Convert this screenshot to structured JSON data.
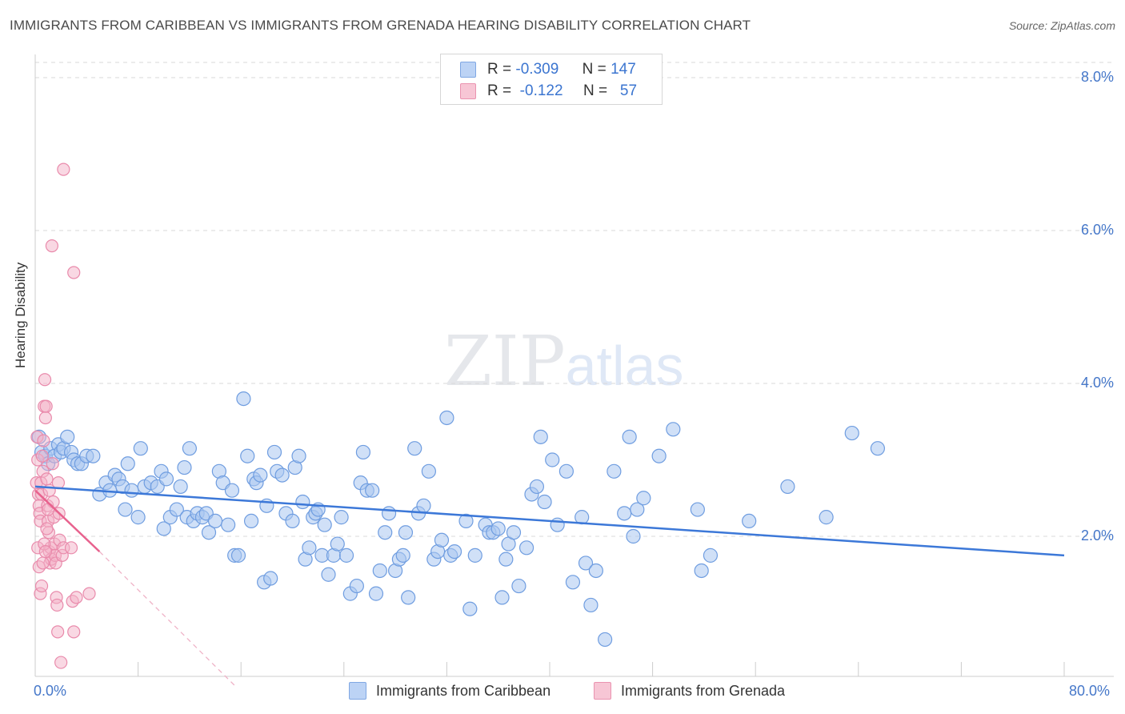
{
  "title": "IMMIGRANTS FROM CARIBBEAN VS IMMIGRANTS FROM GRENADA HEARING DISABILITY CORRELATION CHART",
  "source": "Source: ZipAtlas.com",
  "watermark": {
    "zip": "ZIP",
    "atlas": "atlas"
  },
  "legend": {
    "rows": [
      {
        "r_label": "R =",
        "r_value": "-0.309",
        "n_label": "N =",
        "n_value": "147"
      },
      {
        "r_label": "R =",
        "r_value": "-0.122",
        "n_label": "N =",
        "n_value": "57"
      }
    ]
  },
  "bottom_legend": [
    "Immigrants from Caribbean",
    "Immigrants from Grenada"
  ],
  "colors": {
    "blue": "#3c78d8",
    "blue_fill": "#a9c6f0",
    "pink": "#e8628e",
    "pink_fill": "#f4b2c8",
    "tick_text": "#4577c9",
    "grid": "#d9d9d9"
  },
  "chart_data": {
    "type": "scatter",
    "title": "IMMIGRANTS FROM CARIBBEAN VS IMMIGRANTS FROM GRENADA HEARING DISABILITY CORRELATION CHART",
    "xlabel": "",
    "ylabel": "Hearing Disability",
    "xlim": [
      0,
      80
    ],
    "ylim": [
      0,
      8.2
    ],
    "x_tick_labels": [
      "0.0%",
      "80.0%"
    ],
    "y_ticks": [
      2,
      4,
      6,
      8
    ],
    "y_tick_labels": [
      "2.0%",
      "4.0%",
      "6.0%",
      "8.0%"
    ],
    "series": [
      {
        "name": "Immigrants from Caribbean",
        "color": "#3c78d8",
        "trend": {
          "x": [
            0,
            80
          ],
          "y": [
            2.65,
            1.75
          ]
        },
        "points": [
          [
            0.3,
            3.3
          ],
          [
            0.5,
            3.1
          ],
          [
            0.8,
            3.05
          ],
          [
            1,
            2.95
          ],
          [
            1.2,
            3.15
          ],
          [
            1.5,
            3.05
          ],
          [
            1.8,
            3.2
          ],
          [
            2,
            3.1
          ],
          [
            2.2,
            3.15
          ],
          [
            2.5,
            3.3
          ],
          [
            2.8,
            3.1
          ],
          [
            3,
            3.0
          ],
          [
            3.3,
            2.95
          ],
          [
            3.6,
            2.95
          ],
          [
            4,
            3.05
          ],
          [
            4.5,
            3.05
          ],
          [
            5,
            2.55
          ],
          [
            5.5,
            2.7
          ],
          [
            5.8,
            2.6
          ],
          [
            6.2,
            2.8
          ],
          [
            6.5,
            2.75
          ],
          [
            6.8,
            2.65
          ],
          [
            7,
            2.35
          ],
          [
            7.2,
            2.95
          ],
          [
            7.5,
            2.6
          ],
          [
            8,
            2.25
          ],
          [
            8.2,
            3.15
          ],
          [
            8.5,
            2.65
          ],
          [
            9,
            2.7
          ],
          [
            9.5,
            2.65
          ],
          [
            9.8,
            2.85
          ],
          [
            10,
            2.1
          ],
          [
            10.2,
            2.75
          ],
          [
            10.5,
            2.25
          ],
          [
            11,
            2.35
          ],
          [
            11.3,
            2.65
          ],
          [
            11.6,
            2.9
          ],
          [
            11.8,
            2.25
          ],
          [
            12,
            3.15
          ],
          [
            12.3,
            2.2
          ],
          [
            12.6,
            2.3
          ],
          [
            13,
            2.25
          ],
          [
            13.3,
            2.3
          ],
          [
            13.5,
            2.05
          ],
          [
            14,
            2.2
          ],
          [
            14.3,
            2.85
          ],
          [
            14.6,
            2.7
          ],
          [
            15,
            2.15
          ],
          [
            15.3,
            2.6
          ],
          [
            15.5,
            1.75
          ],
          [
            15.8,
            1.75
          ],
          [
            16.2,
            3.8
          ],
          [
            16.5,
            3.05
          ],
          [
            16.8,
            2.2
          ],
          [
            17,
            2.75
          ],
          [
            17.2,
            2.7
          ],
          [
            17.5,
            2.8
          ],
          [
            17.8,
            1.4
          ],
          [
            18,
            2.4
          ],
          [
            18.3,
            1.45
          ],
          [
            18.6,
            3.1
          ],
          [
            18.8,
            2.85
          ],
          [
            19.2,
            2.8
          ],
          [
            19.5,
            2.3
          ],
          [
            20,
            2.2
          ],
          [
            20.2,
            2.9
          ],
          [
            20.5,
            3.05
          ],
          [
            20.8,
            2.45
          ],
          [
            21,
            1.7
          ],
          [
            21.3,
            1.85
          ],
          [
            21.6,
            2.25
          ],
          [
            21.8,
            2.3
          ],
          [
            22,
            2.35
          ],
          [
            22.3,
            1.75
          ],
          [
            22.5,
            2.15
          ],
          [
            22.8,
            1.5
          ],
          [
            23.2,
            1.75
          ],
          [
            23.5,
            1.9
          ],
          [
            23.8,
            2.25
          ],
          [
            24.2,
            1.75
          ],
          [
            24.5,
            1.25
          ],
          [
            25,
            1.35
          ],
          [
            25.3,
            2.7
          ],
          [
            25.5,
            3.1
          ],
          [
            25.8,
            2.6
          ],
          [
            26.2,
            2.6
          ],
          [
            26.5,
            1.25
          ],
          [
            26.8,
            1.55
          ],
          [
            27.2,
            2.05
          ],
          [
            27.5,
            2.3
          ],
          [
            28,
            1.55
          ],
          [
            28.3,
            1.7
          ],
          [
            28.6,
            1.75
          ],
          [
            28.8,
            2.05
          ],
          [
            29,
            1.2
          ],
          [
            29.5,
            3.15
          ],
          [
            29.8,
            2.3
          ],
          [
            30.2,
            2.4
          ],
          [
            30.6,
            2.85
          ],
          [
            31,
            1.7
          ],
          [
            31.3,
            1.8
          ],
          [
            31.6,
            1.95
          ],
          [
            32,
            3.55
          ],
          [
            32.3,
            1.75
          ],
          [
            32.6,
            1.8
          ],
          [
            33.5,
            2.2
          ],
          [
            33.8,
            1.05
          ],
          [
            34.2,
            1.75
          ],
          [
            35,
            2.15
          ],
          [
            35.3,
            2.05
          ],
          [
            35.6,
            2.05
          ],
          [
            36,
            2.1
          ],
          [
            36.3,
            1.2
          ],
          [
            36.6,
            1.7
          ],
          [
            36.8,
            1.9
          ],
          [
            37.2,
            2.05
          ],
          [
            37.6,
            1.35
          ],
          [
            38.2,
            1.85
          ],
          [
            38.6,
            2.55
          ],
          [
            39,
            2.65
          ],
          [
            39.3,
            3.3
          ],
          [
            39.6,
            2.45
          ],
          [
            40.2,
            3.0
          ],
          [
            40.6,
            2.15
          ],
          [
            41.3,
            2.85
          ],
          [
            41.8,
            1.4
          ],
          [
            42.5,
            2.25
          ],
          [
            42.8,
            1.65
          ],
          [
            43.2,
            1.1
          ],
          [
            43.6,
            1.55
          ],
          [
            44.3,
            0.65
          ],
          [
            45,
            2.85
          ],
          [
            45.8,
            2.3
          ],
          [
            46.2,
            3.3
          ],
          [
            46.5,
            2.0
          ],
          [
            46.8,
            2.35
          ],
          [
            47.3,
            2.5
          ],
          [
            48.5,
            3.05
          ],
          [
            49.6,
            3.4
          ],
          [
            51.5,
            2.35
          ],
          [
            51.8,
            1.55
          ],
          [
            52.5,
            1.75
          ],
          [
            55.5,
            2.2
          ],
          [
            58.5,
            2.65
          ],
          [
            61.5,
            2.25
          ],
          [
            63.5,
            3.35
          ],
          [
            65.5,
            3.15
          ]
        ]
      },
      {
        "name": "Immigrants from Grenada",
        "color": "#e8628e",
        "trend": {
          "x": [
            0,
            5
          ],
          "y": [
            2.6,
            1.8
          ]
        },
        "trend_dashed": {
          "x": [
            5,
            15.5
          ],
          "y": [
            1.8,
            0.05
          ]
        },
        "points": [
          [
            0.1,
            2.7
          ],
          [
            0.15,
            3.3
          ],
          [
            0.2,
            3.0
          ],
          [
            0.25,
            2.55
          ],
          [
            0.3,
            2.4
          ],
          [
            0.35,
            2.3
          ],
          [
            0.4,
            2.2
          ],
          [
            0.45,
            2.7
          ],
          [
            0.5,
            2.55
          ],
          [
            0.55,
            3.05
          ],
          [
            0.6,
            2.85
          ],
          [
            0.65,
            3.25
          ],
          [
            0.7,
            3.7
          ],
          [
            0.75,
            4.05
          ],
          [
            0.8,
            3.55
          ],
          [
            0.85,
            3.7
          ],
          [
            0.9,
            2.75
          ],
          [
            0.95,
            2.4
          ],
          [
            1.0,
            2.2
          ],
          [
            1.05,
            2.05
          ],
          [
            1.1,
            1.8
          ],
          [
            1.15,
            1.65
          ],
          [
            1.2,
            1.85
          ],
          [
            1.25,
            1.7
          ],
          [
            1.3,
            5.8
          ],
          [
            1.35,
            2.95
          ],
          [
            1.4,
            2.45
          ],
          [
            1.45,
            2.25
          ],
          [
            1.5,
            1.9
          ],
          [
            1.55,
            1.75
          ],
          [
            1.6,
            1.65
          ],
          [
            1.65,
            1.2
          ],
          [
            1.7,
            1.1
          ],
          [
            1.75,
            0.75
          ],
          [
            1.8,
            2.7
          ],
          [
            1.85,
            2.3
          ],
          [
            1.9,
            1.95
          ],
          [
            2.0,
            0.35
          ],
          [
            2.1,
            1.75
          ],
          [
            2.2,
            1.85
          ],
          [
            0.2,
            1.85
          ],
          [
            0.3,
            1.6
          ],
          [
            0.4,
            1.25
          ],
          [
            0.5,
            1.35
          ],
          [
            0.6,
            1.65
          ],
          [
            0.7,
            1.9
          ],
          [
            0.8,
            1.8
          ],
          [
            0.9,
            2.1
          ],
          [
            1.0,
            2.35
          ],
          [
            1.1,
            2.6
          ],
          [
            2.2,
            6.8
          ],
          [
            2.8,
            1.85
          ],
          [
            2.9,
            1.15
          ],
          [
            3.0,
            0.75
          ],
          [
            3.2,
            1.2
          ],
          [
            3.0,
            5.45
          ],
          [
            4.2,
            1.25
          ]
        ]
      }
    ]
  }
}
